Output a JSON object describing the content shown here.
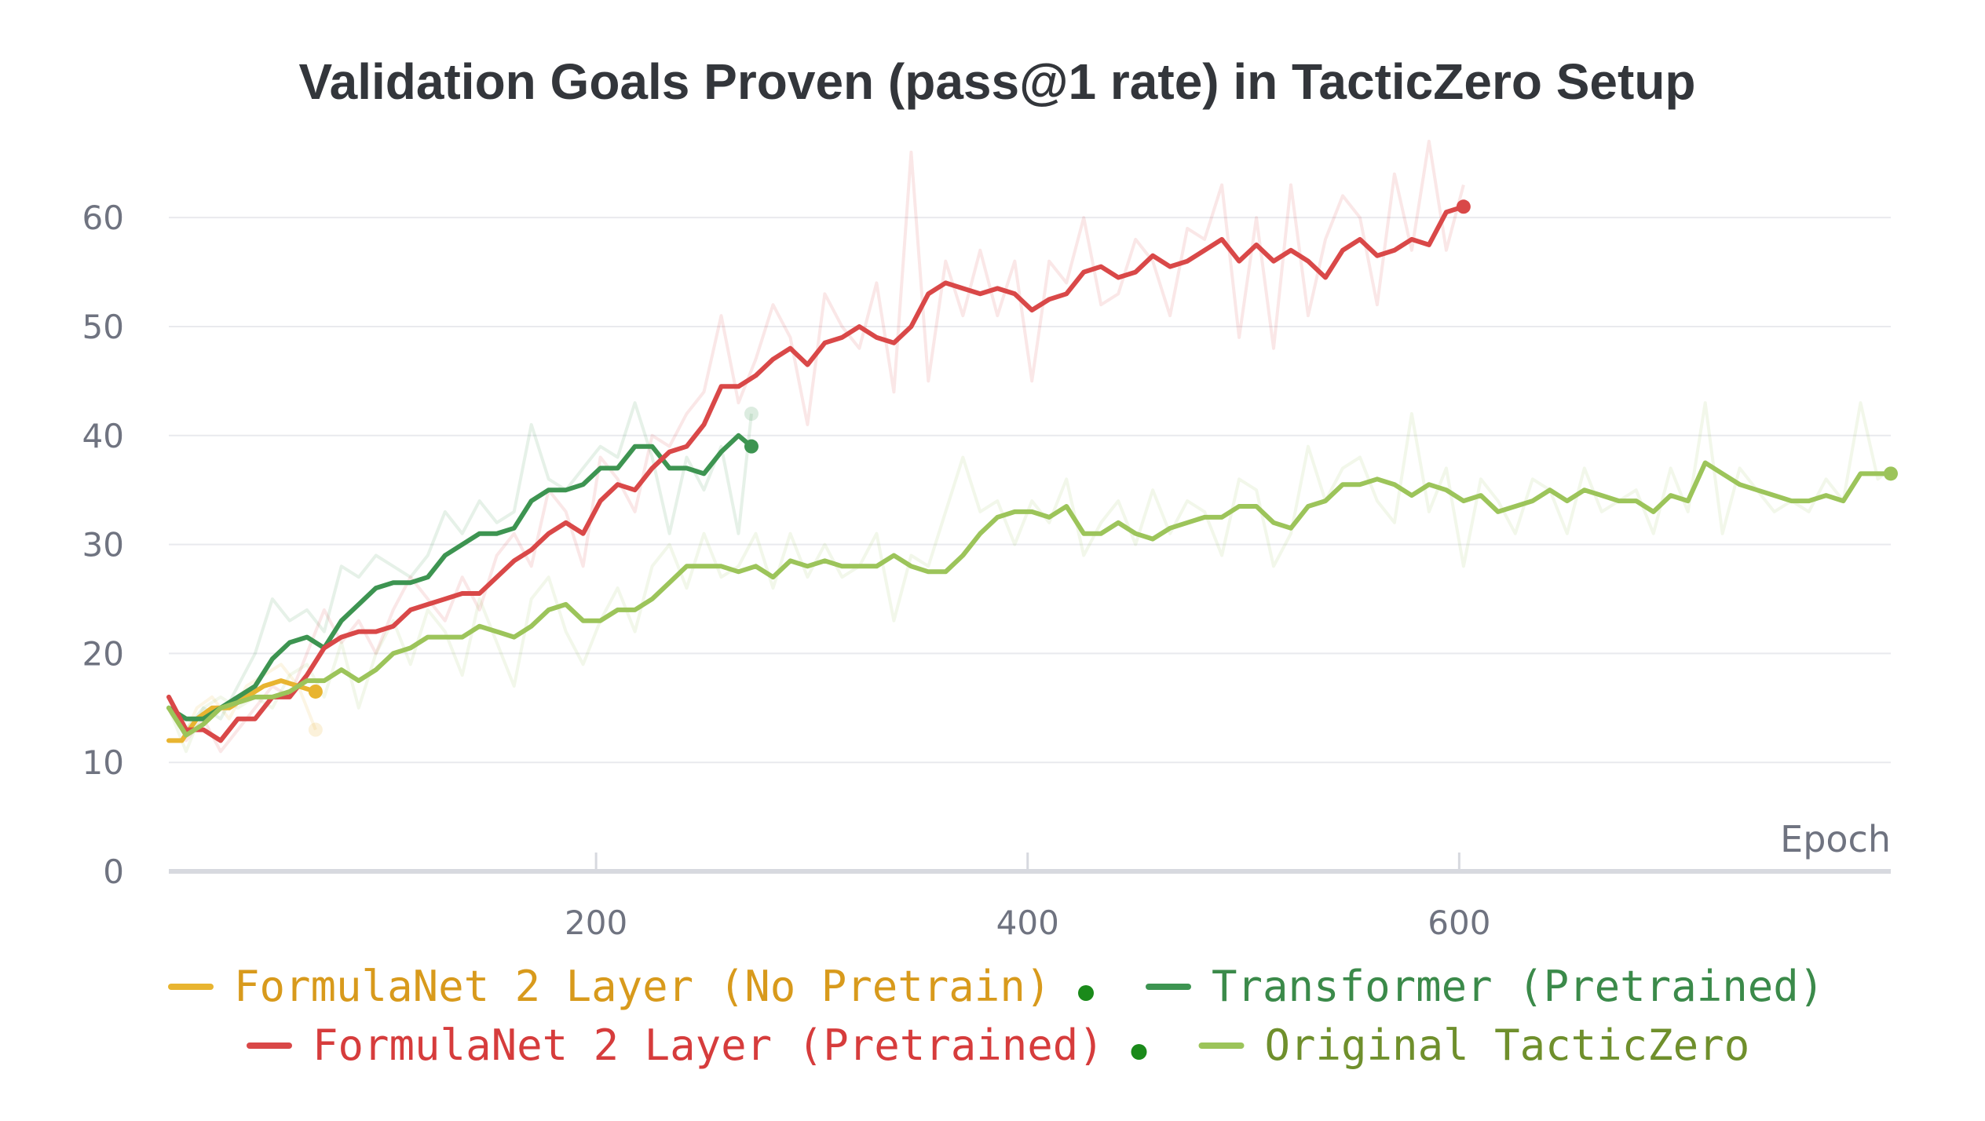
{
  "chart_data": {
    "type": "line",
    "title": "Validation Goals Proven (pass@1 rate) in TacticZero Setup",
    "xlabel": "Epoch",
    "ylabel": "",
    "xlim": [
      2,
      800
    ],
    "ylim": [
      0,
      67
    ],
    "x_ticks": [
      200,
      400,
      600
    ],
    "y_ticks": [
      0,
      10,
      20,
      30,
      40,
      50,
      60
    ],
    "grid": true,
    "legend_position": "bottom",
    "series": [
      {
        "name": "FormulaNet 2 Layer (No Pretrain)",
        "color": "#e8b430",
        "text_color": "#d89a1c",
        "marker_color": "#1a8a1a",
        "x": [
          2,
          8,
          15,
          22,
          30,
          38,
          46,
          54,
          62,
          70
        ],
        "values": [
          12,
          12,
          14,
          15,
          15,
          16,
          17,
          17.5,
          17,
          16.5
        ],
        "raw": [
          12,
          12,
          15,
          16,
          14,
          17,
          18,
          19,
          17,
          13
        ]
      },
      {
        "name": "Transformer (Pretrained)",
        "color": "#3d9451",
        "text_color": "#3b8a4a",
        "marker_color": null,
        "x": [
          2,
          10,
          18,
          26,
          34,
          42,
          50,
          58,
          66,
          74,
          82,
          90,
          98,
          106,
          114,
          122,
          130,
          138,
          146,
          154,
          162,
          170,
          178,
          186,
          194,
          202,
          210,
          218,
          226,
          234,
          242,
          250,
          258,
          266,
          272
        ],
        "values": [
          15,
          14,
          14,
          15,
          16,
          17,
          19.5,
          21,
          21.5,
          20.5,
          23,
          24.5,
          26,
          26.5,
          26.5,
          27,
          29,
          30,
          31,
          31,
          31.5,
          34,
          35,
          35,
          35.5,
          37,
          37,
          39,
          39,
          37,
          37,
          36.5,
          38.5,
          40,
          39
        ],
        "raw": [
          16,
          13,
          15,
          14,
          17,
          20,
          25,
          23,
          24,
          22,
          28,
          27,
          29,
          28,
          27,
          29,
          33,
          31,
          34,
          32,
          33,
          41,
          36,
          35,
          37,
          39,
          38,
          43,
          38,
          31,
          38,
          35,
          39,
          31,
          42
        ]
      },
      {
        "name": "FormulaNet 2 Layer (Pretrained)",
        "color": "#d94848",
        "text_color": "#d63c3c",
        "marker_color": "#1a8a1a",
        "x": [
          2,
          10,
          18,
          26,
          34,
          42,
          50,
          58,
          66,
          74,
          82,
          90,
          98,
          106,
          114,
          122,
          130,
          138,
          146,
          154,
          162,
          170,
          178,
          186,
          194,
          202,
          210,
          218,
          226,
          234,
          242,
          250,
          258,
          266,
          274,
          282,
          290,
          298,
          306,
          314,
          322,
          330,
          338,
          346,
          354,
          362,
          370,
          378,
          386,
          394,
          402,
          410,
          418,
          426,
          434,
          442,
          450,
          458,
          466,
          474,
          482,
          490,
          498,
          506,
          514,
          522,
          530,
          538,
          546,
          554,
          562,
          570,
          578,
          586,
          594,
          602
        ],
        "values": [
          16,
          13,
          13,
          12,
          14,
          14,
          16,
          16,
          18,
          20.5,
          21.5,
          22,
          22,
          22.5,
          24,
          24.5,
          25,
          25.5,
          25.5,
          27,
          28.5,
          29.5,
          31,
          32,
          31,
          34,
          35.5,
          35,
          37,
          38.5,
          39,
          41,
          44.5,
          44.5,
          45.5,
          47,
          48,
          46.5,
          48.5,
          49,
          50,
          49,
          48.5,
          50,
          53,
          54,
          53.5,
          53,
          53.5,
          53,
          51.5,
          52.5,
          53,
          55,
          55.5,
          54.5,
          55,
          56.5,
          55.5,
          56,
          57,
          58,
          56,
          57.5,
          56,
          57,
          56,
          54.5,
          57,
          58,
          56.5,
          57,
          58,
          57.5,
          60.5,
          61
        ],
        "raw": [
          16,
          12,
          14,
          11,
          13,
          15,
          17,
          16,
          20,
          24,
          21,
          23,
          20,
          24,
          27,
          25,
          23,
          27,
          24,
          29,
          31,
          28,
          35,
          33,
          28,
          38,
          36,
          33,
          40,
          39,
          42,
          44,
          51,
          43,
          47,
          52,
          49,
          41,
          53,
          50,
          48,
          54,
          44,
          66,
          45,
          56,
          51,
          57,
          51,
          56,
          45,
          56,
          54,
          60,
          52,
          53,
          58,
          56,
          51,
          59,
          58,
          63,
          49,
          60,
          48,
          63,
          51,
          58,
          62,
          60,
          52,
          64,
          57,
          67,
          57,
          63
        ]
      },
      {
        "name": "Original TacticZero",
        "color": "#9cc45a",
        "text_color": "#6f8f2c",
        "marker_color": null,
        "x": [
          2,
          10,
          18,
          26,
          34,
          42,
          50,
          58,
          66,
          74,
          82,
          90,
          98,
          106,
          114,
          122,
          130,
          138,
          146,
          154,
          162,
          170,
          178,
          186,
          194,
          202,
          210,
          218,
          226,
          234,
          242,
          250,
          258,
          266,
          274,
          282,
          290,
          298,
          306,
          314,
          322,
          330,
          338,
          346,
          354,
          362,
          370,
          378,
          386,
          394,
          402,
          410,
          418,
          426,
          434,
          442,
          450,
          458,
          466,
          474,
          482,
          490,
          498,
          506,
          514,
          522,
          530,
          538,
          546,
          554,
          562,
          570,
          578,
          586,
          594,
          602,
          610,
          618,
          626,
          634,
          642,
          650,
          658,
          666,
          674,
          682,
          690,
          698,
          706,
          714,
          722,
          730,
          738,
          746,
          754,
          762,
          770,
          778,
          786,
          794,
          800
        ],
        "values": [
          15,
          12.5,
          13.5,
          15,
          15.5,
          16,
          16,
          16.5,
          17.5,
          17.5,
          18.5,
          17.5,
          18.5,
          20,
          20.5,
          21.5,
          21.5,
          21.5,
          22.5,
          22,
          21.5,
          22.5,
          24,
          24.5,
          23,
          23,
          24,
          24,
          25,
          26.5,
          28,
          28,
          28,
          27.5,
          28,
          27,
          28.5,
          28,
          28.5,
          28,
          28,
          28,
          29,
          28,
          27.5,
          27.5,
          29,
          31,
          32.5,
          33,
          33,
          32.5,
          33.5,
          31,
          31,
          32,
          31,
          30.5,
          31.5,
          32,
          32.5,
          32.5,
          33.5,
          33.5,
          32,
          31.5,
          33.5,
          34,
          35.5,
          35.5,
          36,
          35.5,
          34.5,
          35.5,
          35,
          34,
          34.5,
          33,
          33.5,
          34,
          35,
          34,
          35,
          34.5,
          34,
          34,
          33,
          34.5,
          34,
          37.5,
          36.5,
          35.5,
          35,
          34.5,
          34,
          34,
          34.5,
          34,
          36.5,
          36.5,
          36.5
        ],
        "raw": [
          15,
          11,
          15,
          16,
          15,
          16,
          15,
          18,
          19,
          16,
          21,
          15,
          20,
          23,
          19,
          24,
          22,
          18,
          25,
          21,
          17,
          25,
          27,
          22,
          19,
          23,
          26,
          22,
          28,
          30,
          26,
          31,
          27,
          28,
          31,
          26,
          31,
          27,
          30,
          27,
          28,
          31,
          23,
          29,
          28,
          33,
          38,
          33,
          34,
          30,
          34,
          32,
          36,
          29,
          32,
          34,
          30,
          35,
          31,
          34,
          33,
          29,
          36,
          35,
          28,
          31,
          39,
          34,
          37,
          38,
          34,
          32,
          42,
          33,
          37,
          28,
          36,
          34,
          31,
          36,
          35,
          31,
          37,
          33,
          34,
          35,
          31,
          37,
          33,
          43,
          31,
          37,
          35,
          33,
          34,
          33,
          36,
          34,
          43,
          36,
          37
        ]
      }
    ],
    "end_markers": [
      {
        "series": 0,
        "x": 70,
        "y": 16.5,
        "faint_y": 13
      },
      {
        "series": 1,
        "x": 272,
        "y": 39,
        "faint_y": 42
      },
      {
        "series": 2,
        "x": 602,
        "y": 61
      },
      {
        "series": 3,
        "x": 800,
        "y": 36.5
      }
    ]
  }
}
